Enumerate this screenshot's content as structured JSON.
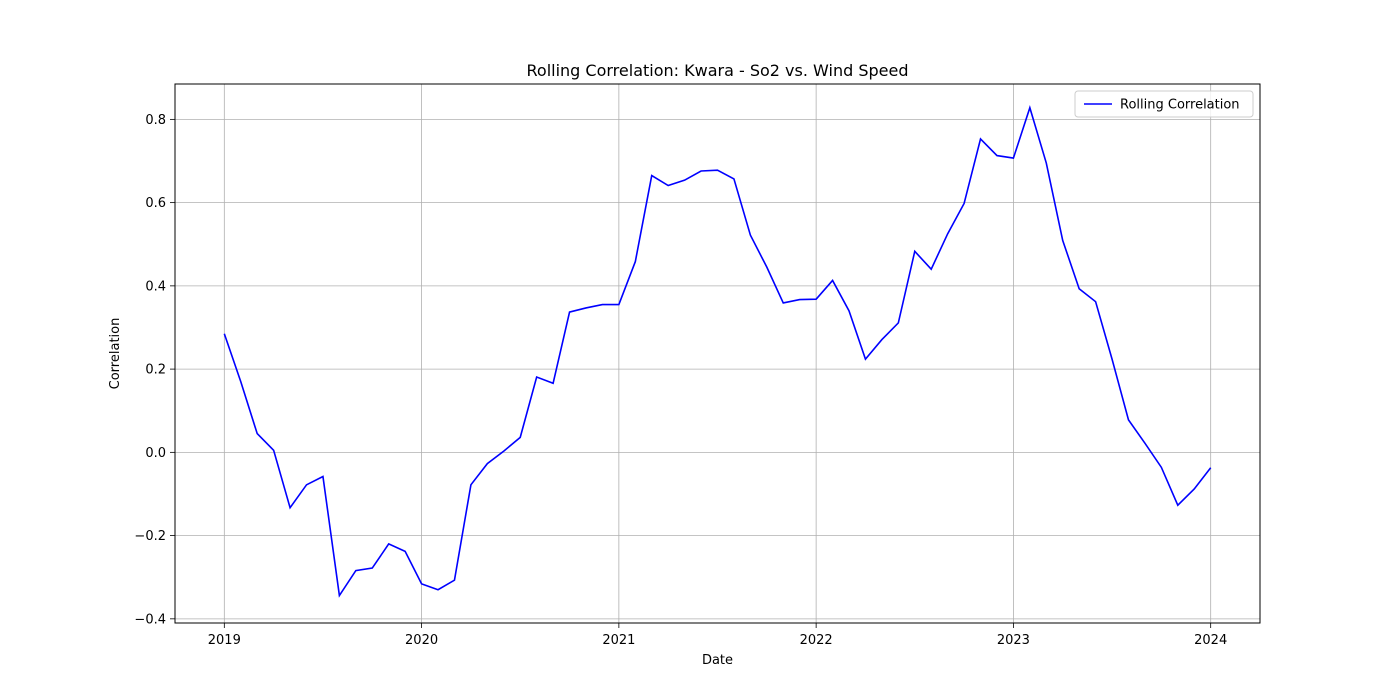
{
  "chart_data": {
    "type": "line",
    "title": "Rolling Correlation: Kwara - So2 vs. Wind Speed",
    "xlabel": "Date",
    "ylabel": "Correlation",
    "xlim": [
      2018.75,
      2024.25
    ],
    "ylim": [
      -0.41,
      0.885
    ],
    "xticks": [
      2019,
      2020,
      2021,
      2022,
      2023,
      2024
    ],
    "yticks": [
      -0.4,
      -0.2,
      0.0,
      0.2,
      0.4,
      0.6,
      0.8
    ],
    "ytick_labels": [
      "−0.4",
      "−0.2",
      "0.0",
      "0.2",
      "0.4",
      "0.6",
      "0.8"
    ],
    "grid": true,
    "legend_position": "top-right",
    "color": "#0000ff",
    "series": [
      {
        "name": "Rolling Correlation",
        "x": [
          "2019-01",
          "2019-02",
          "2019-03",
          "2019-04",
          "2019-05",
          "2019-06",
          "2019-07",
          "2019-08",
          "2019-09",
          "2019-10",
          "2019-11",
          "2019-12",
          "2020-01",
          "2020-02",
          "2020-03",
          "2020-04",
          "2020-05",
          "2020-06",
          "2020-07",
          "2020-08",
          "2020-09",
          "2020-10",
          "2020-11",
          "2020-12",
          "2021-01",
          "2021-02",
          "2021-03",
          "2021-04",
          "2021-05",
          "2021-06",
          "2021-07",
          "2021-08",
          "2021-09",
          "2021-10",
          "2021-11",
          "2021-12",
          "2022-01",
          "2022-02",
          "2022-03",
          "2022-04",
          "2022-05",
          "2022-06",
          "2022-07",
          "2022-08",
          "2022-09",
          "2022-10",
          "2022-11",
          "2022-12",
          "2023-01",
          "2023-02",
          "2023-03",
          "2023-04",
          "2023-05",
          "2023-06",
          "2023-07",
          "2023-08",
          "2023-09",
          "2023-10",
          "2023-11",
          "2023-12",
          "2024-01"
        ],
        "values": [
          0.285,
          0.17,
          0.045,
          0.005,
          -0.133,
          -0.078,
          -0.058,
          -0.344,
          -0.284,
          -0.278,
          -0.22,
          -0.238,
          -0.316,
          -0.33,
          -0.307,
          -0.078,
          -0.027,
          0.003,
          0.036,
          0.181,
          0.166,
          0.337,
          0.347,
          0.355,
          0.355,
          0.458,
          0.665,
          0.641,
          0.654,
          0.676,
          0.678,
          0.657,
          0.522,
          0.445,
          0.359,
          0.367,
          0.368,
          0.413,
          0.34,
          0.224,
          0.271,
          0.311,
          0.483,
          0.44,
          0.525,
          0.598,
          0.753,
          0.713,
          0.707,
          0.828,
          0.695,
          0.509,
          0.393,
          0.362,
          0.224,
          0.078,
          0.022,
          -0.036,
          -0.127,
          -0.088,
          -0.037
        ]
      }
    ]
  }
}
